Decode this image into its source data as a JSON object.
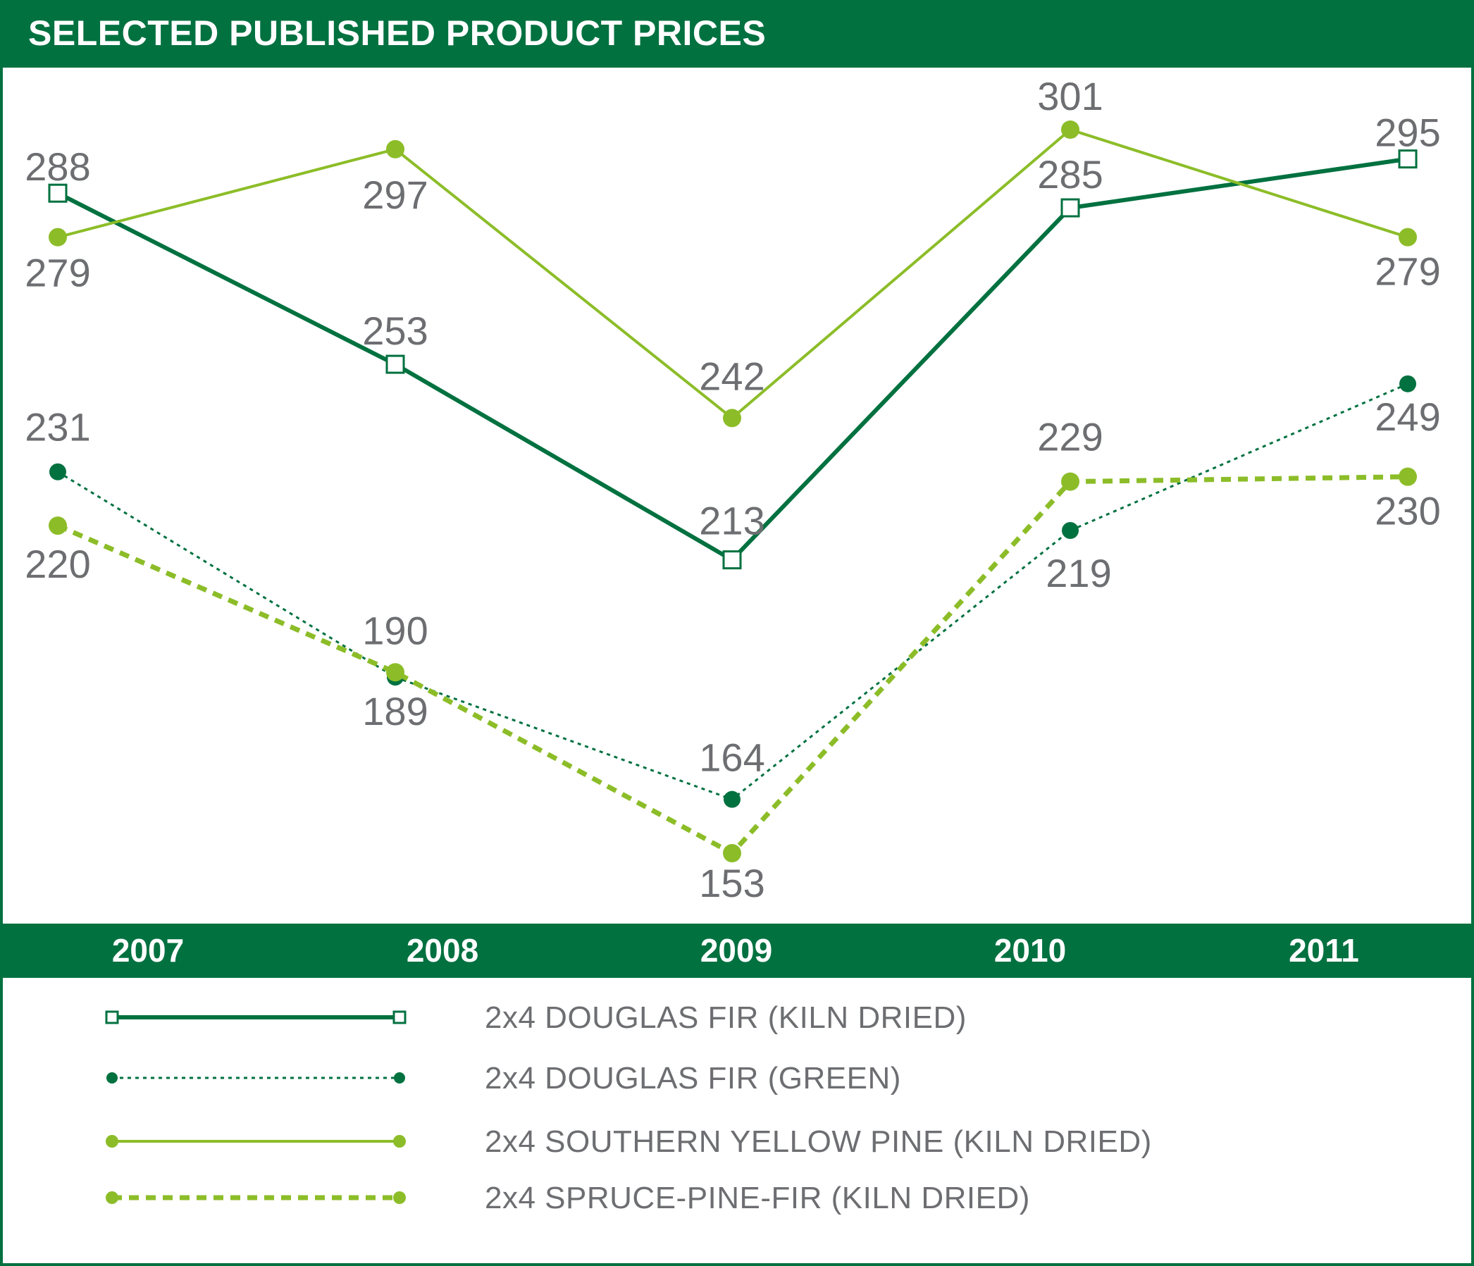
{
  "title": "SELECTED PUBLISHED PRODUCT PRICES",
  "colors": {
    "dark_green": "#017140",
    "light_green": "#8cbd28",
    "label_gray": "#6d6e71"
  },
  "chart_data": {
    "type": "line",
    "title": "SELECTED PUBLISHED PRODUCT PRICES",
    "categories": [
      "2007",
      "2008",
      "2009",
      "2010",
      "2011"
    ],
    "xlabel": "",
    "ylabel": "",
    "ylim": [
      140,
      310
    ],
    "grid": false,
    "legend_placement": "bottom",
    "series": [
      {
        "name": "2x4 DOUGLAS FIR (KILN DRIED)",
        "values": [
          288,
          253,
          213,
          285,
          295
        ],
        "color": "#017140",
        "line_style": "solid",
        "marker": "open-square"
      },
      {
        "name": "2x4 DOUGLAS FIR (GREEN)",
        "values": [
          231,
          189,
          164,
          219,
          249
        ],
        "color": "#017140",
        "line_style": "dotted",
        "marker": "filled-circle"
      },
      {
        "name": "2x4 SOUTHERN YELLOW PINE (KILN DRIED)",
        "values": [
          279,
          297,
          242,
          301,
          279
        ],
        "color": "#8cbd28",
        "line_style": "solid",
        "marker": "filled-circle"
      },
      {
        "name": "2x4 SPRUCE-PINE-FIR (KILN DRIED)",
        "values": [
          220,
          190,
          153,
          229,
          230
        ],
        "color": "#8cbd28",
        "line_style": "dashed",
        "marker": "filled-circle"
      }
    ]
  }
}
